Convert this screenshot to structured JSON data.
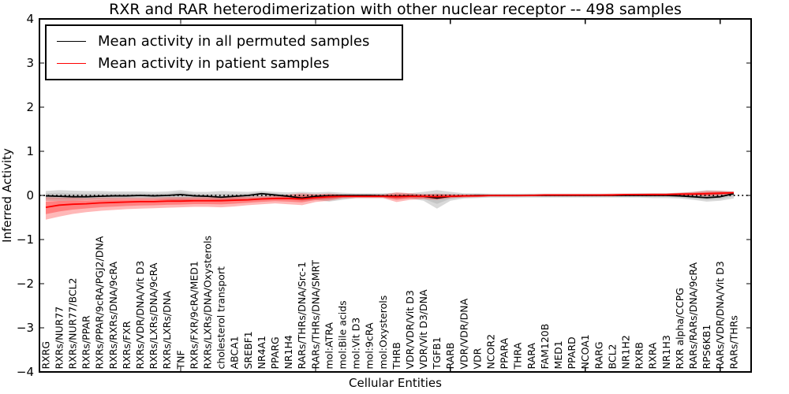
{
  "chart_data": {
    "type": "line",
    "title": "RXR and RAR heterodimerization with other nuclear receptor -- 498 samples",
    "xlabel": "Cellular Entities",
    "ylabel": "Inferred Activity",
    "ylim": [
      -4,
      4
    ],
    "yticks": [
      -4,
      -3,
      -2,
      -1,
      0,
      1,
      2,
      3,
      4
    ],
    "grid": false,
    "legend_position": "upper left",
    "x_tick_rotation": 90,
    "zero_reference_line": {
      "y": 0,
      "style": "dotted",
      "color": "#000000"
    },
    "categories": [
      "RXRG",
      "RXRs/NUR77",
      "RXRs/NUR77/BCL2",
      "RXRs/PPAR",
      "RXRs/PPAR/9cRA/PGJ2/DNA",
      "RXRs/RXRs/DNA/9cRA",
      "RXRs/FXR",
      "RXRs/VDR/DNA/Vit D3",
      "RXRs/LXRs/DNA/9cRA",
      "RXRs/LXRs/DNA",
      "TNF",
      "RXRs/FXR/9cRA/MED1",
      "RXRs/LXRs/DNA/Oxysterols",
      "cholesterol transport",
      "ABCA1",
      "SREBF1",
      "NR4A1",
      "PPARG",
      "NR1H4",
      "RARs/THRs/DNA/Src-1",
      "RARs/THRs/DNA/SMRT",
      "mol:ATRA",
      "mol:Bile acids",
      "mol:Vit D3",
      "mol:9cRA",
      "mol:Oxysterols",
      "THRB",
      "VDR/VDR/Vit D3",
      "VDR/Vit D3/DNA",
      "TGFB1",
      "RARB",
      "VDR/VDR/DNA",
      "VDR",
      "NCOR2",
      "PPARA",
      "THRA",
      "RARA",
      "FAM120B",
      "MED1",
      "PPARD",
      "NCOA1",
      "RARG",
      "BCL2",
      "NR1H2",
      "RXRB",
      "RXRA",
      "NR1H3",
      "RXR alpha/CCPG",
      "RARs/RARs/DNA/9cRA",
      "RPS6KB1",
      "RARs/VDR/DNA/Vit D3",
      "RARs/THRs"
    ],
    "series": [
      {
        "name": "Mean activity in all permuted samples",
        "color": "#000000",
        "band_color": "#808080",
        "values": [
          -0.01,
          -0.02,
          -0.03,
          -0.03,
          -0.02,
          -0.01,
          -0.01,
          0.0,
          -0.01,
          0.0,
          0.02,
          -0.01,
          -0.02,
          -0.04,
          -0.02,
          0.0,
          0.04,
          0.01,
          -0.02,
          -0.06,
          -0.02,
          -0.01,
          0.0,
          0.0,
          0.0,
          -0.01,
          -0.02,
          -0.01,
          -0.02,
          -0.06,
          -0.02,
          -0.01,
          0.0,
          0.0,
          0.0,
          0.0,
          0.0,
          0.0,
          0.0,
          0.0,
          0.0,
          0.0,
          0.0,
          0.0,
          0.0,
          0.0,
          0.0,
          -0.01,
          -0.03,
          -0.05,
          -0.03,
          0.04
        ],
        "band_hi": [
          0.1,
          0.12,
          0.11,
          0.1,
          0.1,
          0.09,
          0.09,
          0.09,
          0.08,
          0.09,
          0.12,
          0.08,
          0.08,
          0.1,
          0.09,
          0.08,
          0.1,
          0.08,
          0.07,
          0.08,
          0.07,
          0.08,
          0.06,
          0.05,
          0.05,
          0.05,
          0.06,
          0.05,
          0.08,
          0.12,
          0.08,
          0.05,
          0.05,
          0.04,
          0.04,
          0.04,
          0.04,
          0.04,
          0.04,
          0.04,
          0.04,
          0.04,
          0.04,
          0.04,
          0.05,
          0.05,
          0.05,
          0.06,
          0.08,
          0.12,
          0.11,
          0.09
        ],
        "band_lo": [
          -0.12,
          -0.13,
          -0.12,
          -0.11,
          -0.1,
          -0.1,
          -0.09,
          -0.09,
          -0.09,
          -0.1,
          -0.14,
          -0.09,
          -0.09,
          -0.12,
          -0.1,
          -0.08,
          -0.09,
          -0.08,
          -0.08,
          -0.12,
          -0.1,
          -0.14,
          -0.1,
          -0.06,
          -0.06,
          -0.06,
          -0.08,
          -0.07,
          -0.12,
          -0.3,
          -0.12,
          -0.07,
          -0.06,
          -0.05,
          -0.05,
          -0.05,
          -0.05,
          -0.05,
          -0.05,
          -0.05,
          -0.05,
          -0.05,
          -0.05,
          -0.05,
          -0.05,
          -0.06,
          -0.06,
          -0.07,
          -0.1,
          -0.14,
          -0.12,
          -0.07
        ]
      },
      {
        "name": "Mean activity in patient samples",
        "color": "#ff0000",
        "band_color": "#ff0000",
        "values": [
          -0.27,
          -0.22,
          -0.2,
          -0.19,
          -0.17,
          -0.16,
          -0.15,
          -0.14,
          -0.14,
          -0.13,
          -0.13,
          -0.12,
          -0.12,
          -0.12,
          -0.11,
          -0.1,
          -0.08,
          -0.07,
          -0.07,
          -0.08,
          -0.05,
          -0.03,
          -0.02,
          -0.02,
          -0.02,
          -0.02,
          -0.03,
          -0.02,
          -0.02,
          -0.03,
          -0.02,
          -0.01,
          -0.01,
          0.0,
          0.0,
          0.0,
          0.0,
          0.01,
          0.01,
          0.01,
          0.01,
          0.01,
          0.01,
          0.02,
          0.02,
          0.02,
          0.02,
          0.03,
          0.03,
          0.04,
          0.05,
          0.06
        ],
        "band_hi": [
          -0.04,
          -0.05,
          -0.05,
          -0.06,
          -0.05,
          -0.05,
          -0.05,
          -0.05,
          -0.05,
          -0.04,
          -0.04,
          -0.04,
          -0.04,
          -0.04,
          -0.03,
          -0.03,
          -0.02,
          -0.01,
          0.02,
          0.05,
          0.03,
          0.04,
          0.02,
          0.02,
          0.02,
          0.02,
          0.07,
          0.05,
          0.03,
          0.04,
          0.03,
          0.02,
          0.02,
          0.02,
          0.02,
          0.02,
          0.03,
          0.03,
          0.03,
          0.03,
          0.03,
          0.03,
          0.04,
          0.04,
          0.04,
          0.05,
          0.05,
          0.06,
          0.08,
          0.1,
          0.1,
          0.09
        ],
        "band_lo": [
          -0.55,
          -0.48,
          -0.42,
          -0.38,
          -0.35,
          -0.33,
          -0.31,
          -0.3,
          -0.29,
          -0.28,
          -0.27,
          -0.26,
          -0.26,
          -0.27,
          -0.25,
          -0.22,
          -0.2,
          -0.18,
          -0.2,
          -0.22,
          -0.15,
          -0.12,
          -0.07,
          -0.06,
          -0.06,
          -0.06,
          -0.15,
          -0.1,
          -0.08,
          -0.1,
          -0.06,
          -0.05,
          -0.04,
          -0.03,
          -0.03,
          -0.03,
          -0.02,
          -0.02,
          -0.02,
          -0.02,
          -0.02,
          -0.02,
          -0.02,
          -0.01,
          -0.01,
          -0.01,
          -0.01,
          0.0,
          0.0,
          -0.02,
          0.0,
          0.02
        ]
      }
    ]
  },
  "legend": {
    "entries": [
      {
        "label": "Mean activity in all permuted samples",
        "color": "#000000"
      },
      {
        "label": "Mean activity in patient samples",
        "color": "#ff0000"
      }
    ]
  },
  "colors": {
    "frame": "#000000",
    "permuted_line": "#000000",
    "patient_line": "#ff0000",
    "permuted_band": "rgba(128,128,128,0.30)",
    "patient_band": "rgba(255,0,0,0.28)"
  }
}
